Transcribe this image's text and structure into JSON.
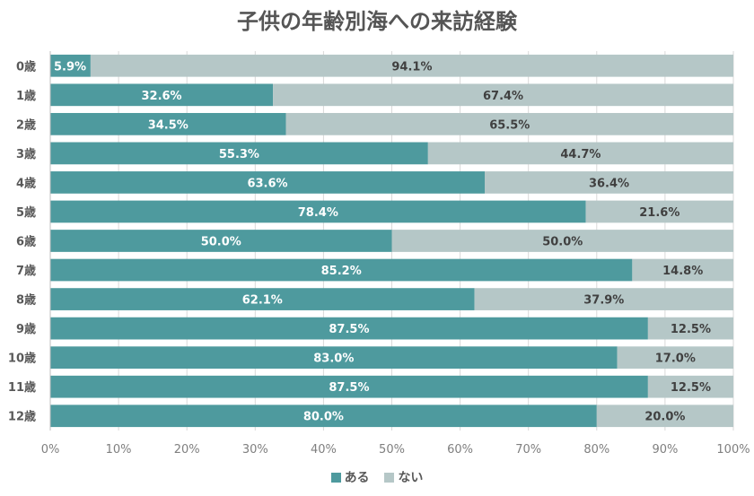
{
  "chart_data": {
    "type": "bar",
    "orientation": "horizontal",
    "stacked": true,
    "title": "子供の年齢別海への来訪経験",
    "categories": [
      "0歳",
      "1歳",
      "2歳",
      "3歳",
      "4歳",
      "5歳",
      "6歳",
      "7歳",
      "8歳",
      "9歳",
      "10歳",
      "11歳",
      "12歳"
    ],
    "series": [
      {
        "name": "ある",
        "color": "#4e9a9e",
        "label_color": "#ffffff",
        "values": [
          5.9,
          32.6,
          34.5,
          55.3,
          63.6,
          78.4,
          50.0,
          85.2,
          62.1,
          87.5,
          83.0,
          87.5,
          80.0
        ],
        "labels": [
          "5.9%",
          "32.6%",
          "34.5%",
          "55.3%",
          "63.6%",
          "78.4%",
          "50.0%",
          "85.2%",
          "62.1%",
          "87.5%",
          "83.0%",
          "87.5%",
          "80.0%"
        ]
      },
      {
        "name": "ない",
        "color": "#b5c7c7",
        "label_color": "#404040",
        "values": [
          94.1,
          67.4,
          65.5,
          44.7,
          36.4,
          21.6,
          50.0,
          14.8,
          37.9,
          12.5,
          17.0,
          12.5,
          20.0
        ],
        "labels": [
          "94.1%",
          "67.4%",
          "65.5%",
          "44.7%",
          "36.4%",
          "21.6%",
          "50.0%",
          "14.8%",
          "37.9%",
          "12.5%",
          "17.0%",
          "12.5%",
          "20.0%"
        ]
      }
    ],
    "xlim": [
      0,
      100
    ],
    "xticks": [
      0,
      10,
      20,
      30,
      40,
      50,
      60,
      70,
      80,
      90,
      100
    ],
    "xtick_labels": [
      "0%",
      "10%",
      "20%",
      "30%",
      "40%",
      "50%",
      "60%",
      "70%",
      "80%",
      "90%",
      "100%"
    ],
    "grid": true,
    "legend_position": "bottom"
  }
}
